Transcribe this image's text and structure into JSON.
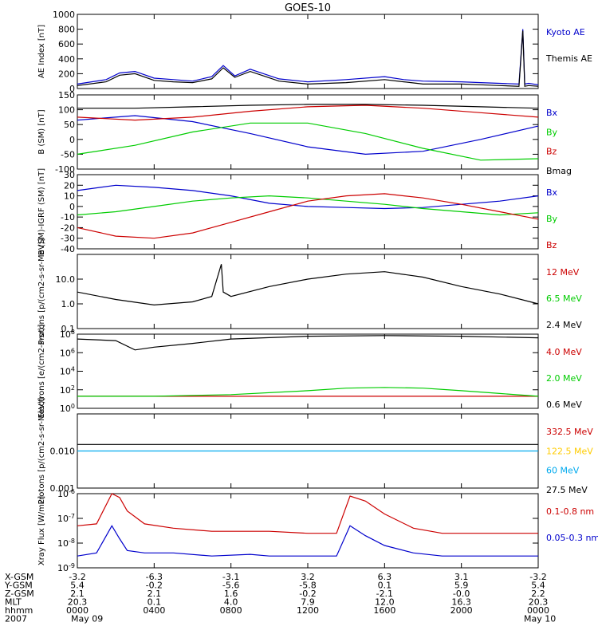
{
  "chart_data": {
    "type": "line",
    "title": "GOES-10",
    "x_time_ticks": [
      "0000",
      "0400",
      "0800",
      "1200",
      "1600",
      "2000",
      "0000"
    ],
    "x_date_labels": [
      "May 09",
      "May 10"
    ],
    "x_footer_rows": [
      {
        "label": "X-GSM",
        "values": [
          "-3.2",
          "-6.3",
          "-3.1",
          "3.2",
          "6.3",
          "3.1",
          "-3.2"
        ]
      },
      {
        "label": "Y-GSM",
        "values": [
          "5.4",
          "-0.2",
          "-5.6",
          "-5.8",
          "0.1",
          "5.9",
          "5.4"
        ]
      },
      {
        "label": "Z-GSM",
        "values": [
          "2.1",
          "2.1",
          "1.6",
          "-0.2",
          "-2.1",
          "-0.0",
          "2.2"
        ]
      },
      {
        "label": "MLT",
        "values": [
          "20.3",
          "0.1",
          "4.0",
          "7.9",
          "12.0",
          "16.3",
          "20.3"
        ]
      },
      {
        "label": "hhmm",
        "values": [
          "0000",
          "0400",
          "0800",
          "1200",
          "1600",
          "2000",
          "0000"
        ]
      },
      {
        "label": "2007",
        "values": []
      }
    ],
    "panels": [
      {
        "ylabel": "AE Index [nT]",
        "scale": "linear",
        "ylim": [
          0,
          1000
        ],
        "yticks": [
          "0",
          "200",
          "400",
          "600",
          "800",
          "1000"
        ],
        "series": [
          {
            "name": "Kyoto AE",
            "color": "#0000cc",
            "x": [
              0,
              1.5,
              2.2,
              3,
              4,
              5,
              6,
              7,
              7.6,
              8.2,
              9,
              9.7,
              10.5,
              12,
              14,
              16,
              17,
              18,
              20,
              21,
              22,
              23,
              23.2,
              23.3,
              23.5,
              24
            ],
            "y": [
              60,
              120,
              210,
              230,
              140,
              120,
              100,
              160,
              310,
              170,
              260,
              200,
              130,
              90,
              120,
              160,
              120,
              100,
              90,
              80,
              70,
              60,
              800,
              60,
              70,
              50
            ]
          },
          {
            "name": "Themis AE",
            "color": "#000000",
            "x": [
              0,
              1.5,
              2.2,
              3,
              4,
              5,
              6,
              7,
              7.6,
              8.2,
              9,
              9.7,
              10.5,
              12,
              14,
              16,
              17,
              18,
              20,
              21,
              22,
              23,
              23.2,
              23.3,
              23.5,
              24
            ],
            "y": [
              40,
              90,
              180,
              200,
              110,
              90,
              80,
              130,
              280,
              150,
              230,
              170,
              100,
              60,
              80,
              120,
              90,
              60,
              60,
              50,
              40,
              30,
              780,
              30,
              40,
              30
            ]
          }
        ]
      },
      {
        "ylabel": "B (SM) [nT]",
        "scale": "linear",
        "ylim": [
          -100,
          150
        ],
        "yticks": [
          "-100",
          "-50",
          "0",
          "50",
          "100",
          "150"
        ],
        "series": [
          {
            "name": "Bx",
            "color": "#0000cc",
            "x": [
              0,
              3,
              6,
              9,
              12,
              15,
              18,
              21,
              24
            ],
            "y": [
              65,
              80,
              60,
              20,
              -25,
              -50,
              -40,
              0,
              45
            ]
          },
          {
            "name": "By",
            "color": "#00cc00",
            "x": [
              0,
              3,
              6,
              9,
              12,
              15,
              18,
              21,
              24
            ],
            "y": [
              -50,
              -20,
              25,
              55,
              55,
              20,
              -30,
              -70,
              -65
            ]
          },
          {
            "name": "Bz",
            "color": "#cc0000",
            "x": [
              0,
              3,
              6,
              9,
              12,
              15,
              18,
              21,
              24
            ],
            "y": [
              75,
              65,
              75,
              95,
              110,
              115,
              105,
              90,
              75
            ]
          },
          {
            "name": "Bmag",
            "color": "#000000",
            "x": [
              0,
              3,
              6,
              9,
              12,
              15,
              18,
              21,
              24
            ],
            "y": [
              105,
              105,
              110,
              115,
              118,
              118,
              115,
              110,
              105
            ]
          }
        ]
      },
      {
        "ylabel": "B (SM)-IGRF (SM) [nT]",
        "scale": "linear",
        "ylim": [
          -40,
          30
        ],
        "yticks": [
          "-40",
          "-30",
          "-20",
          "-10",
          "0",
          "10",
          "20",
          "30"
        ],
        "series": [
          {
            "name": "Bx",
            "color": "#0000cc",
            "x": [
              0,
              2,
              4,
              6,
              8,
              10,
              12,
              14,
              16,
              18,
              20,
              22,
              24
            ],
            "y": [
              15,
              20,
              18,
              15,
              10,
              3,
              0,
              -1,
              -2,
              -1,
              2,
              5,
              10
            ]
          },
          {
            "name": "By",
            "color": "#00cc00",
            "x": [
              0,
              2,
              4,
              6,
              8,
              10,
              12,
              14,
              16,
              18,
              20,
              22,
              24
            ],
            "y": [
              -8,
              -5,
              0,
              5,
              8,
              10,
              8,
              5,
              2,
              -2,
              -5,
              -8,
              -6
            ]
          },
          {
            "name": "Bz",
            "color": "#cc0000",
            "x": [
              0,
              2,
              4,
              6,
              8,
              10,
              12,
              14,
              16,
              18,
              20,
              22,
              24
            ],
            "y": [
              -20,
              -28,
              -30,
              -25,
              -15,
              -5,
              5,
              10,
              12,
              8,
              2,
              -5,
              -12
            ]
          }
        ]
      },
      {
        "ylabel": "Protons [p/(cm2-s-sr-MeV)]",
        "scale": "log",
        "ylim": [
          0.1,
          100
        ],
        "yticks": [
          "0.1",
          "1.0",
          "10.0"
        ],
        "series": [
          {
            "name": "12 MeV",
            "color": "#cc0000",
            "x": [],
            "y": []
          },
          {
            "name": "6.5 MeV",
            "color": "#00cc00",
            "x": [],
            "y": []
          },
          {
            "name": "2.4 MeV",
            "color": "#000000",
            "x": [
              0,
              2,
              4,
              6,
              7,
              7.5,
              7.6,
              8,
              10,
              12,
              14,
              16,
              18,
              20,
              22,
              24
            ],
            "y": [
              3,
              1.5,
              0.9,
              1.2,
              2,
              40,
              3,
              2,
              5,
              10,
              16,
              20,
              12,
              5,
              2.5,
              1
            ]
          }
        ]
      },
      {
        "ylabel": "Electrons [e/(cm2-s-sr)]",
        "scale": "log",
        "ylim": [
          1,
          100000000
        ],
        "yticks": [
          "10^0",
          "10^2",
          "10^4",
          "10^6",
          "10^8"
        ],
        "series": [
          {
            "name": "4.0 MeV",
            "color": "#cc0000",
            "x": [
              0,
              4,
              8,
              12,
              16,
              20,
              24
            ],
            "y": [
              20,
              20,
              20,
              20,
              20,
              20,
              20
            ]
          },
          {
            "name": "2.0 MeV",
            "color": "#00cc00",
            "x": [
              0,
              4,
              8,
              12,
              14,
              16,
              18,
              20,
              22,
              24
            ],
            "y": [
              20,
              20,
              30,
              80,
              150,
              180,
              150,
              80,
              40,
              20
            ]
          },
          {
            "name": "0.6 MeV",
            "color": "#000000",
            "x": [
              0,
              2,
              3,
              4,
              6,
              8,
              12,
              16,
              20,
              24
            ],
            "y": [
              30000000,
              20000000,
              2000000,
              4000000,
              10000000,
              30000000,
              60000000,
              70000000,
              60000000,
              40000000
            ]
          }
        ]
      },
      {
        "ylabel": "Protons [p/(cm2-s-sr-MeV)]",
        "scale": "log",
        "ylim": [
          0.001,
          0.1
        ],
        "yticks": [
          "0.001",
          "0.010"
        ],
        "series": [
          {
            "name": "332.5 MeV",
            "color": "#cc0000",
            "x": [],
            "y": []
          },
          {
            "name": "122.5 MeV",
            "color": "#ffcc00",
            "x": [],
            "y": []
          },
          {
            "name": "60 MeV",
            "color": "#00aaee",
            "x": [
              0,
              6,
              12,
              18,
              24
            ],
            "y": [
              0.01,
              0.01,
              0.01,
              0.01,
              0.01
            ]
          },
          {
            "name": "27.5 MeV",
            "color": "#000000",
            "x": [
              0,
              6,
              12,
              18,
              24
            ],
            "y": [
              0.015,
              0.015,
              0.015,
              0.015,
              0.015
            ]
          }
        ]
      },
      {
        "ylabel": "Xray Flux [W/m2]",
        "scale": "log",
        "ylim": [
          1e-09,
          1e-06
        ],
        "yticks": [
          "10^-9",
          "10^-8",
          "10^-7",
          "10^-6"
        ],
        "series": [
          {
            "name": "0.1-0.8 nm",
            "color": "#cc0000",
            "x": [
              0,
              1,
              1.8,
              2.2,
              2.6,
              3.5,
              5,
              7,
              9,
              10,
              12,
              13.5,
              14.2,
              15,
              16,
              17.5,
              19,
              22,
              24
            ],
            "y": [
              5e-08,
              6e-08,
              1e-06,
              7e-07,
              2e-07,
              6e-08,
              4e-08,
              3e-08,
              3e-08,
              3e-08,
              2.5e-08,
              2.5e-08,
              8e-07,
              5e-07,
              1.5e-07,
              4e-08,
              2.5e-08,
              2.5e-08,
              2.5e-08
            ]
          },
          {
            "name": "0.05-0.3 nm",
            "color": "#0000cc",
            "x": [
              0,
              1,
              1.8,
              2.2,
              2.6,
              3.5,
              5,
              7,
              9,
              10,
              12,
              13.5,
              14.2,
              15,
              16,
              17.5,
              19,
              22,
              24
            ],
            "y": [
              3e-09,
              4e-09,
              5e-08,
              1.5e-08,
              5e-09,
              4e-09,
              4e-09,
              3e-09,
              3.5e-09,
              3e-09,
              3e-09,
              3e-09,
              5e-08,
              2e-08,
              8e-09,
              4e-09,
              3e-09,
              3e-09,
              3e-09
            ]
          }
        ]
      }
    ]
  }
}
